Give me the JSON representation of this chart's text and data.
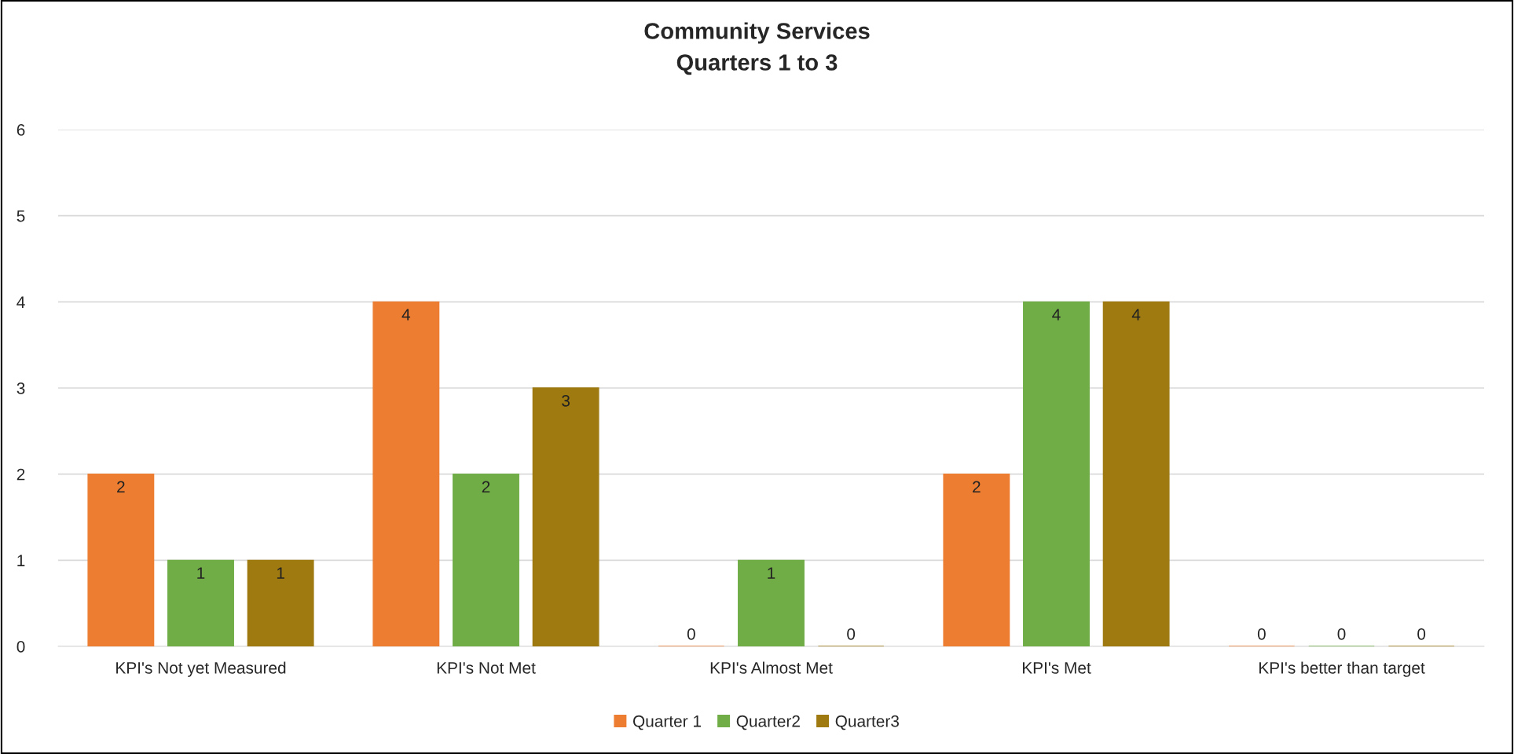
{
  "chart_data": {
    "type": "bar",
    "title": "Community Services",
    "subtitle": "Quarters 1 to 3",
    "categories": [
      "KPI's Not yet Measured",
      "KPI's Not Met",
      "KPI's Almost Met",
      "KPI's Met",
      "KPI's better than target"
    ],
    "series": [
      {
        "name": "Quarter 1",
        "color": "#ed7d31",
        "values": [
          2,
          4,
          0,
          2,
          0
        ]
      },
      {
        "name": "Quarter2",
        "color": "#70ad47",
        "values": [
          1,
          2,
          1,
          4,
          0
        ]
      },
      {
        "name": "Quarter3",
        "color": "#9e7a10",
        "values": [
          1,
          3,
          0,
          4,
          0
        ]
      }
    ],
    "ylim": [
      0,
      6
    ],
    "yticks": [
      0,
      1,
      2,
      3,
      4,
      5,
      6
    ],
    "grid": "y",
    "legend": "bottom",
    "data_labels": true
  }
}
